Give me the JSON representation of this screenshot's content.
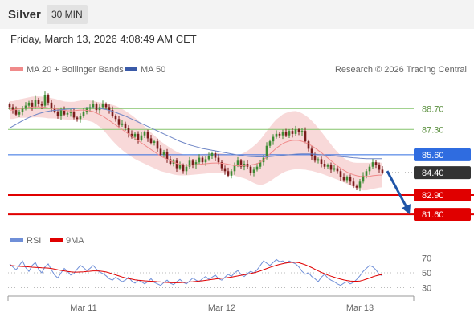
{
  "header": {
    "title": "Silver",
    "timeframe": "30 MIN"
  },
  "date_line": "Friday, March 13, 2026 4:08:49 AM CET",
  "legend": {
    "ma20": "MA 20 + Bollinger Bands",
    "ma50": "MA 50",
    "rsi": "RSI",
    "rsi_ma": "9MA"
  },
  "credit": "Research © 2026 Trading Central",
  "colors": {
    "up": "#3f8b34",
    "down": "#7a1c1c",
    "bollinger": "#f6cccc",
    "ma20": "#f08a8a",
    "ma50": "#6f86c6",
    "pivot": "#2f6ce0",
    "support": "#e00000",
    "target_arrow": "#1f55a8",
    "resistance": "#84c46a",
    "rsi": "#6f8fd8",
    "rsi_ma": "#e00000"
  },
  "chart_data": [
    {
      "type": "candlestick",
      "x_labels": [
        "Mar 11",
        "Mar 12",
        "Mar 13"
      ],
      "ylim": [
        80.8,
        90.6
      ],
      "levels": [
        {
          "value": 88.7,
          "label": "88.70",
          "kind": "resistance"
        },
        {
          "value": 87.3,
          "label": "87.30",
          "kind": "resistance"
        },
        {
          "value": 85.6,
          "label": "85.60",
          "kind": "pivot"
        },
        {
          "value": 84.4,
          "label": "84.40",
          "kind": "last"
        },
        {
          "value": 82.9,
          "label": "82.90",
          "kind": "support"
        },
        {
          "value": 81.6,
          "label": "81.60",
          "kind": "support"
        }
      ],
      "closes": [
        88.8,
        88.6,
        88.3,
        88.5,
        88.7,
        88.9,
        89.1,
        88.8,
        89.3,
        89.0,
        88.9,
        89.6,
        89.1,
        88.7,
        88.5,
        88.2,
        88.6,
        88.3,
        88.4,
        88.5,
        88.1,
        88.0,
        88.2,
        88.5,
        88.7,
        88.8,
        89.0,
        88.6,
        88.8,
        89.0,
        88.8,
        88.6,
        88.2,
        88.0,
        87.6,
        87.7,
        87.4,
        87.0,
        86.8,
        87.0,
        86.6,
        86.9,
        87.1,
        86.7,
        86.4,
        86.5,
        86.0,
        85.6,
        85.8,
        85.3,
        85.0,
        85.2,
        84.7,
        84.9,
        84.5,
        84.8,
        85.2,
        84.9,
        85.1,
        85.4,
        85.1,
        85.3,
        85.5,
        85.7,
        85.4,
        85.1,
        84.7,
        84.5,
        84.2,
        84.5,
        84.9,
        85.2,
        84.8,
        85.0,
        84.8,
        84.4,
        84.6,
        84.8,
        85.1,
        85.4,
        86.2,
        86.5,
        86.8,
        87.0,
        86.9,
        87.1,
        86.9,
        87.2,
        87.0,
        87.3,
        87.1,
        87.2,
        86.5,
        86.0,
        85.5,
        85.2,
        85.3,
        85.0,
        84.8,
        84.9,
        84.6,
        84.7,
        84.5,
        84.1,
        83.9,
        84.1,
        83.8,
        83.5,
        83.4,
        83.8,
        84.2,
        84.5,
        84.8,
        85.1,
        84.9,
        84.6,
        84.4
      ],
      "ma20": [
        88.6,
        88.6,
        88.65,
        88.7,
        88.72,
        88.75,
        88.78,
        88.8,
        88.82,
        88.82,
        88.8,
        88.78,
        88.75,
        88.72,
        88.7,
        88.66,
        88.62,
        88.58,
        88.56,
        88.55,
        88.56,
        88.58,
        88.6,
        88.6,
        88.58,
        88.55,
        88.5,
        88.4,
        88.3,
        88.2,
        88.05,
        87.9,
        87.75,
        87.6,
        87.45,
        87.3,
        87.15,
        87.0,
        86.85,
        86.7,
        86.55,
        86.4,
        86.25,
        86.1,
        85.95,
        85.8,
        85.65,
        85.5,
        85.4,
        85.3,
        85.2,
        85.1,
        85.02,
        84.96,
        84.92,
        84.9,
        84.9,
        84.92,
        84.94,
        84.96,
        84.98,
        85.0,
        85.02,
        85.04,
        85.05,
        85.05,
        85.03,
        85.0,
        84.96,
        84.92,
        84.88,
        84.86,
        84.86,
        84.88,
        84.9,
        84.92,
        84.95,
        85.0,
        85.1,
        85.25,
        85.45,
        85.65,
        85.85,
        86.05,
        86.2,
        86.35,
        86.45,
        86.52,
        86.56,
        86.58,
        86.56,
        86.5,
        86.42,
        86.32,
        86.2,
        86.06,
        85.9,
        85.74,
        85.56,
        85.38,
        85.2,
        85.02,
        84.86,
        84.7,
        84.56,
        84.44,
        84.34,
        84.26,
        84.2,
        84.16,
        84.14,
        84.14,
        84.16,
        84.2,
        84.22,
        84.24,
        84.24
      ],
      "ma50": [
        87.4,
        87.52,
        87.64,
        87.76,
        87.88,
        88.0,
        88.1,
        88.2,
        88.28,
        88.36,
        88.42,
        88.48,
        88.52,
        88.56,
        88.58,
        88.6,
        88.62,
        88.64,
        88.66,
        88.68,
        88.7,
        88.72,
        88.74,
        88.75,
        88.76,
        88.76,
        88.76,
        88.74,
        88.72,
        88.68,
        88.64,
        88.58,
        88.52,
        88.44,
        88.36,
        88.28,
        88.2,
        88.1,
        88.0,
        87.9,
        87.8,
        87.7,
        87.6,
        87.5,
        87.4,
        87.3,
        87.2,
        87.1,
        87.0,
        86.9,
        86.8,
        86.7,
        86.6,
        86.5,
        86.42,
        86.34,
        86.26,
        86.2,
        86.14,
        86.08,
        86.02,
        85.98,
        85.94,
        85.9,
        85.86,
        85.82,
        85.78,
        85.74,
        85.7,
        85.66,
        85.62,
        85.58,
        85.55,
        85.52,
        85.5,
        85.48,
        85.47,
        85.46,
        85.46,
        85.46,
        85.47,
        85.48,
        85.5,
        85.52,
        85.54,
        85.56,
        85.58,
        85.6,
        85.62,
        85.64,
        85.65,
        85.66,
        85.66,
        85.66,
        85.65,
        85.64,
        85.62,
        85.6,
        85.58,
        85.56,
        85.54,
        85.52,
        85.5,
        85.48,
        85.46,
        85.44,
        85.42,
        85.4,
        85.38,
        85.36,
        85.35,
        85.34,
        85.34,
        85.34,
        85.34,
        85.34,
        85.34
      ],
      "band_width": [
        0.6,
        0.6,
        0.6,
        0.62,
        0.64,
        0.66,
        0.68,
        0.7,
        0.7,
        0.7,
        0.7,
        0.7,
        0.7,
        0.68,
        0.66,
        0.64,
        0.62,
        0.6,
        0.6,
        0.6,
        0.6,
        0.62,
        0.64,
        0.66,
        0.68,
        0.7,
        0.72,
        0.76,
        0.82,
        0.9,
        1.0,
        1.1,
        1.2,
        1.28,
        1.34,
        1.38,
        1.4,
        1.4,
        1.4,
        1.38,
        1.35,
        1.3,
        1.25,
        1.2,
        1.15,
        1.1,
        1.05,
        1.0,
        0.95,
        0.9,
        0.86,
        0.82,
        0.78,
        0.74,
        0.7,
        0.68,
        0.66,
        0.66,
        0.66,
        0.66,
        0.66,
        0.66,
        0.66,
        0.66,
        0.66,
        0.66,
        0.66,
        0.66,
        0.66,
        0.66,
        0.68,
        0.72,
        0.78,
        0.86,
        0.96,
        1.1,
        1.24,
        1.38,
        1.52,
        1.64,
        1.74,
        1.82,
        1.88,
        1.92,
        1.94,
        1.96,
        1.96,
        1.96,
        1.96,
        1.95,
        1.92,
        1.88,
        1.82,
        1.76,
        1.68,
        1.6,
        1.5,
        1.4,
        1.3,
        1.2,
        1.1,
        1.0,
        0.92,
        0.86,
        0.82,
        0.8,
        0.8,
        0.82,
        0.86,
        0.9,
        0.92,
        0.92,
        0.9,
        0.88,
        0.86,
        0.84,
        0.82
      ]
    },
    {
      "type": "line",
      "name": "RSI",
      "ylim": [
        24,
        76
      ],
      "y_ticks": [
        70,
        50,
        30
      ],
      "values": [
        62,
        58,
        54,
        60,
        66,
        57,
        52,
        60,
        64,
        55,
        50,
        58,
        62,
        54,
        47,
        43,
        50,
        56,
        52,
        47,
        49,
        55,
        60,
        57,
        53,
        56,
        60,
        55,
        51,
        49,
        46,
        42,
        40,
        44,
        41,
        38,
        40,
        44,
        39,
        36,
        40,
        38,
        35,
        38,
        42,
        37,
        35,
        33,
        37,
        40,
        36,
        34,
        38,
        41,
        37,
        35,
        39,
        43,
        40,
        38,
        42,
        45,
        41,
        44,
        47,
        42,
        40,
        44,
        48,
        45,
        50,
        53,
        48,
        45,
        49,
        52,
        50,
        54,
        60,
        66,
        63,
        60,
        64,
        68,
        65,
        66,
        63,
        66,
        64,
        62,
        58,
        52,
        48,
        50,
        45,
        42,
        38,
        44,
        48,
        43,
        40,
        38,
        35,
        33,
        36,
        38,
        35,
        37,
        41,
        46,
        52,
        56,
        60,
        58,
        54,
        48,
        46
      ],
      "ma": [
        60,
        59.6,
        59.2,
        58.8,
        58.6,
        58.4,
        58,
        57.6,
        57.4,
        57.2,
        56.8,
        56.6,
        56.4,
        55.8,
        55,
        54,
        53.2,
        52.6,
        52,
        51.4,
        51,
        51,
        51.2,
        51.4,
        51.8,
        52.2,
        52.6,
        52.6,
        52.4,
        52,
        51.2,
        50,
        48.6,
        47.2,
        45.8,
        44.4,
        43.2,
        42.2,
        41.4,
        40.6,
        40,
        39.6,
        39.2,
        38.8,
        38.6,
        38.4,
        38,
        37.6,
        37.2,
        37,
        36.8,
        36.6,
        36.6,
        36.8,
        37,
        37.2,
        37.6,
        38,
        38.4,
        38.8,
        39.2,
        39.8,
        40.4,
        41,
        41.6,
        42.2,
        42.6,
        43,
        43.6,
        44.2,
        45,
        45.8,
        46.6,
        47.4,
        48.2,
        49,
        50,
        51.2,
        52.6,
        54.2,
        55.8,
        57.4,
        58.8,
        60.2,
        61.4,
        62.4,
        63.2,
        63.8,
        64.2,
        64.2,
        63.6,
        62.4,
        60.8,
        59,
        57,
        54.8,
        52.6,
        50.6,
        48.8,
        47,
        45.4,
        44,
        42.6,
        41.4,
        40.4,
        39.6,
        39,
        38.6,
        38.6,
        39,
        40,
        41.4,
        43,
        44.6,
        46,
        47,
        47.6
      ]
    }
  ]
}
